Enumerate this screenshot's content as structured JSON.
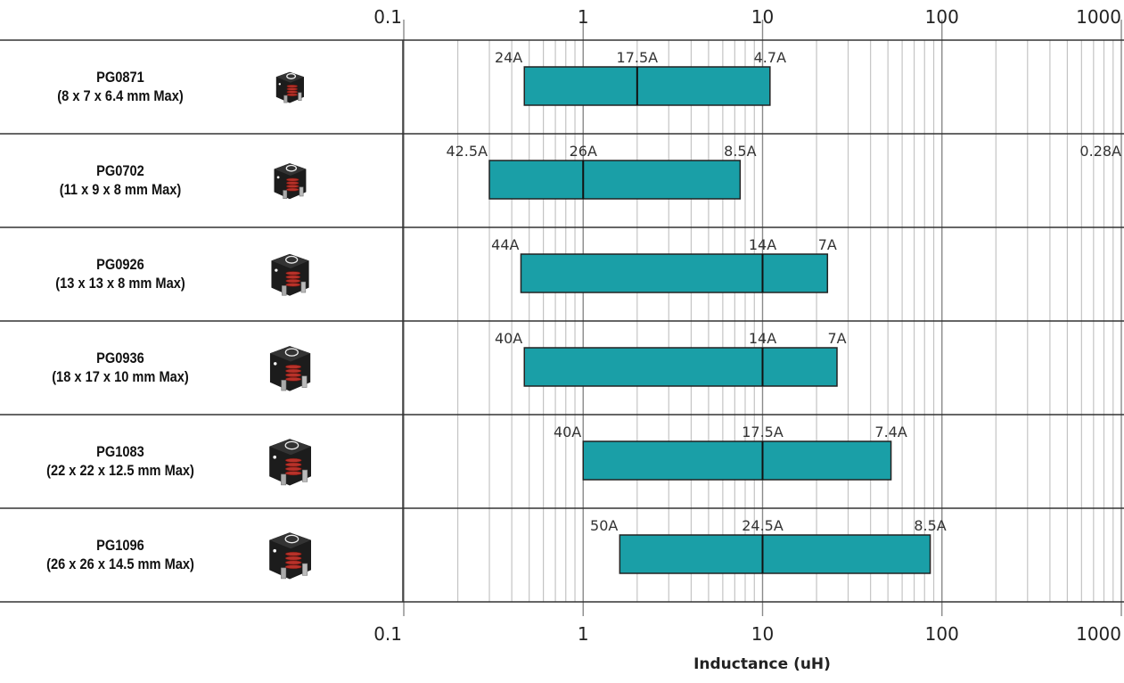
{
  "chart_data": {
    "type": "bar",
    "orientation": "horizontal",
    "bar_type": "floating-range",
    "x_axis": {
      "scale": "log",
      "range": [
        0.1,
        1000
      ],
      "ticks": [
        0.1,
        1,
        10,
        100,
        1000
      ],
      "tick_labels": [
        "0.1",
        "1",
        "10",
        "100",
        "1000"
      ],
      "label": "Inductance (uH)"
    },
    "grid": true,
    "bar_color": "#1a9fa7",
    "rows": [
      {
        "name": "PG0871",
        "dimensions": "(8 x 7 x 6.4 mm Max)",
        "icon": "power-inductor-icon",
        "range": [
          0.47,
          11
        ],
        "divider": 2,
        "current_labels": [
          {
            "text": "24A",
            "x": 0.47
          },
          {
            "text": "17.5A",
            "x": 2
          },
          {
            "text": "4.7A",
            "x": 11
          }
        ]
      },
      {
        "name": "PG0702",
        "dimensions": "(11 x 9 x 8 mm Max)",
        "icon": "power-inductor-icon",
        "range": [
          0.3,
          7.5
        ],
        "divider": 1,
        "current_labels": [
          {
            "text": "42.5A",
            "x": 0.3
          },
          {
            "text": "26A",
            "x": 1
          },
          {
            "text": "8.5A",
            "x": 7.5
          },
          {
            "text": "0.28A",
            "x": 1000
          }
        ]
      },
      {
        "name": "PG0926",
        "dimensions": "(13 x 13 x 8 mm Max)",
        "icon": "power-inductor-icon",
        "range": [
          0.45,
          23
        ],
        "divider": 10,
        "current_labels": [
          {
            "text": "44A",
            "x": 0.45
          },
          {
            "text": "14A",
            "x": 10
          },
          {
            "text": "7A",
            "x": 23
          }
        ]
      },
      {
        "name": "PG0936",
        "dimensions": "(18 x 17 x 10 mm Max)",
        "icon": "power-inductor-icon",
        "range": [
          0.47,
          26
        ],
        "divider": 10,
        "current_labels": [
          {
            "text": "40A",
            "x": 0.47
          },
          {
            "text": "14A",
            "x": 10
          },
          {
            "text": "7A",
            "x": 26
          }
        ]
      },
      {
        "name": "PG1083",
        "dimensions": "(22 x 22 x 12.5 mm Max)",
        "icon": "power-inductor-icon",
        "range": [
          1,
          52
        ],
        "divider": 10,
        "current_labels": [
          {
            "text": "40A",
            "x": 1
          },
          {
            "text": "17.5A",
            "x": 10
          },
          {
            "text": "7.4A",
            "x": 52
          }
        ]
      },
      {
        "name": "PG1096",
        "dimensions": "(26 x 26 x 14.5 mm Max)",
        "icon": "power-inductor-icon",
        "range": [
          1.6,
          86
        ],
        "divider": 10,
        "current_labels": [
          {
            "text": "50A",
            "x": 1.6
          },
          {
            "text": "24.5A",
            "x": 10
          },
          {
            "text": "8.5A",
            "x": 86
          }
        ]
      }
    ]
  }
}
